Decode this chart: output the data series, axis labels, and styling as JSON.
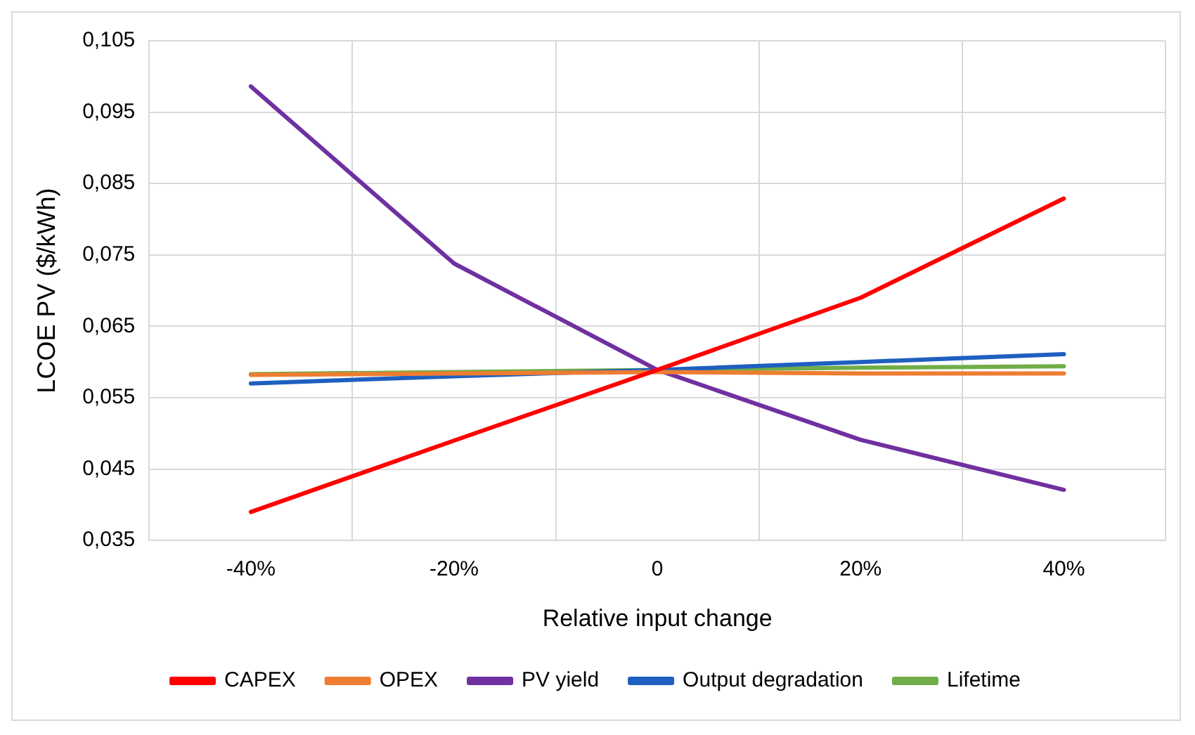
{
  "chart_data": {
    "type": "line",
    "xlabel": "Relative input change",
    "ylabel": "LCOE PV ($/kWh)",
    "categories": [
      "-40%",
      "-20%",
      "0",
      "20%",
      "40%"
    ],
    "series": [
      {
        "name": "CAPEX",
        "color": "#ff0000",
        "values": [
          0.039,
          0.049,
          0.0589,
          0.069,
          0.0829
        ]
      },
      {
        "name": "OPEX",
        "color": "#ed7d31",
        "values": [
          0.0582,
          0.0584,
          0.0586,
          0.0584,
          0.0584
        ]
      },
      {
        "name": "PV yield",
        "color": "#7030a0",
        "values": [
          0.0986,
          0.0738,
          0.0589,
          0.0491,
          0.0421
        ]
      },
      {
        "name": "Output degradation",
        "color": "#1f5fc0",
        "values": [
          0.057,
          0.058,
          0.0589,
          0.06,
          0.0611
        ]
      },
      {
        "name": "Lifetime",
        "color": "#70ad47",
        "values": [
          0.0583,
          0.0586,
          0.0589,
          0.0592,
          0.0594
        ]
      }
    ],
    "ylim": [
      0.035,
      0.105
    ],
    "yticks": [
      {
        "value": 0.035,
        "label": "0,035"
      },
      {
        "value": 0.045,
        "label": "0,045"
      },
      {
        "value": 0.055,
        "label": "0,055"
      },
      {
        "value": 0.065,
        "label": "0,065"
      },
      {
        "value": 0.075,
        "label": "0,075"
      },
      {
        "value": 0.085,
        "label": "0,085"
      },
      {
        "value": 0.095,
        "label": "0,095"
      },
      {
        "value": 0.105,
        "label": "0,105"
      }
    ],
    "grid": true,
    "legend": "bottom",
    "marker": "none",
    "line_style": "solid"
  }
}
